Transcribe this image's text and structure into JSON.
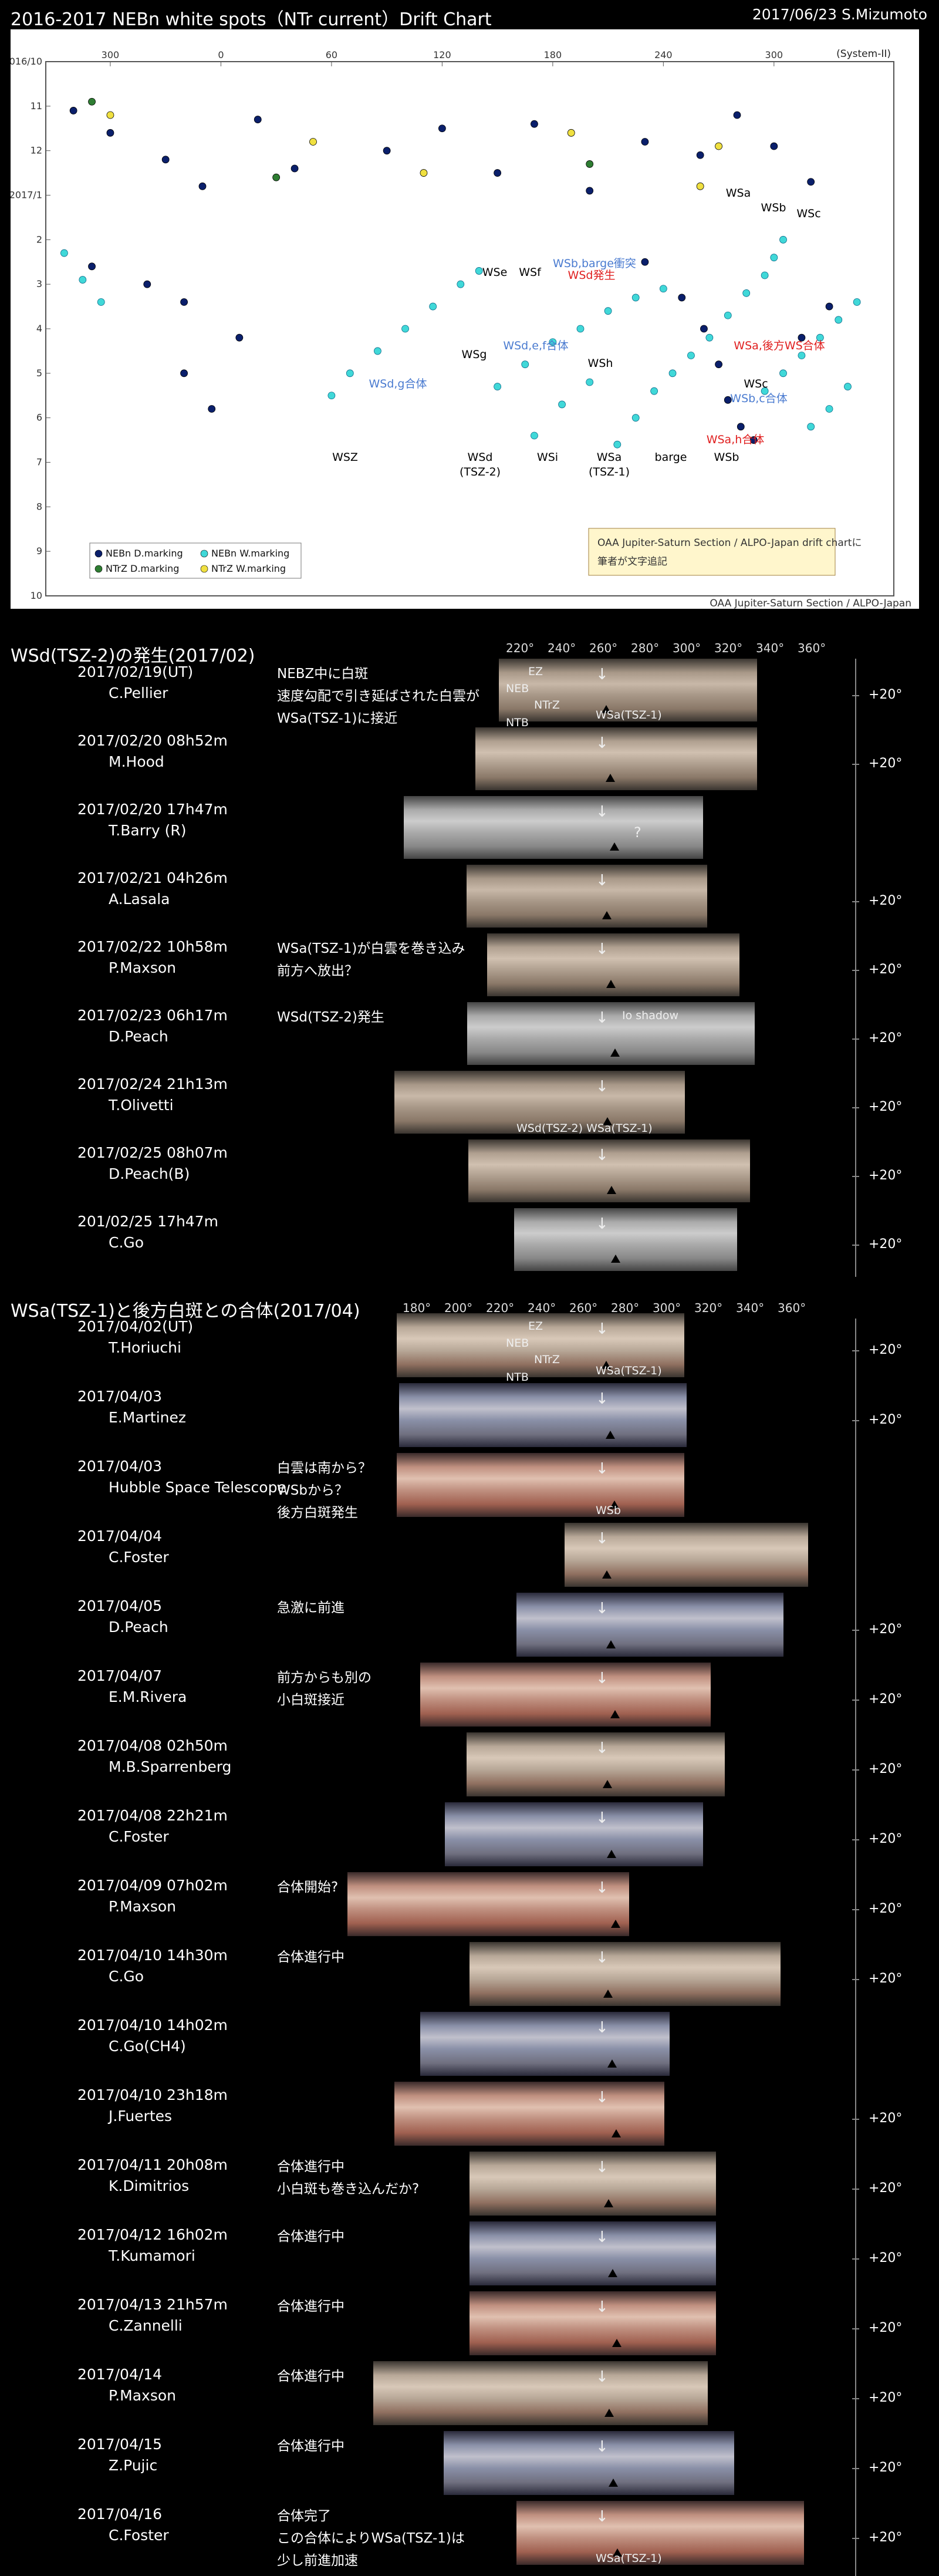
{
  "header": {
    "title": "2016-2017 NEBn white spots（NTr current）Drift Chart",
    "date_author": "2017/06/23 S.Mizumoto"
  },
  "chart_data": {
    "type": "scatter",
    "title": "2016-2017 NEBn white spots（NTr current）Drift Chart",
    "system": "(System-II)",
    "x_ticks": [
      "300",
      "0",
      "60",
      "120",
      "180",
      "240",
      "300"
    ],
    "y_ticks": [
      "2016/10",
      "11",
      "12",
      "2017/1",
      "2",
      "3",
      "4",
      "5",
      "6",
      "7",
      "8",
      "9",
      "10"
    ],
    "series": [
      {
        "name": "NEBn D.marking",
        "color": "#0a1f6b",
        "points": [
          [
            -80,
            11.1
          ],
          [
            -60,
            11.6
          ],
          [
            -30,
            12.2
          ],
          [
            -10,
            12.8
          ],
          [
            20,
            11.3
          ],
          [
            40,
            12.4
          ],
          [
            90,
            12.0
          ],
          [
            120,
            11.5
          ],
          [
            150,
            12.5
          ],
          [
            170,
            11.4
          ],
          [
            200,
            12.9
          ],
          [
            230,
            11.8
          ],
          [
            260,
            12.1
          ],
          [
            280,
            11.2
          ],
          [
            300,
            11.9
          ],
          [
            320,
            12.7
          ],
          [
            -70,
            2.6
          ],
          [
            -40,
            3.0
          ],
          [
            -20,
            3.4
          ],
          [
            10,
            4.2
          ],
          [
            -20,
            5.0
          ],
          [
            -5,
            5.8
          ],
          [
            230,
            2.5
          ],
          [
            250,
            3.3
          ],
          [
            262,
            4.0
          ],
          [
            270,
            4.8
          ],
          [
            275,
            5.6
          ],
          [
            282,
            6.2
          ],
          [
            289,
            6.5
          ],
          [
            315,
            4.2
          ],
          [
            330,
            3.5
          ]
        ]
      },
      {
        "name": "NEBn W.marking",
        "color": "#40d8d8",
        "points": [
          [
            -85,
            2.3
          ],
          [
            -75,
            2.9
          ],
          [
            -65,
            3.4
          ],
          [
            60,
            5.5
          ],
          [
            70,
            5.0
          ],
          [
            85,
            4.5
          ],
          [
            100,
            4.0
          ],
          [
            115,
            3.5
          ],
          [
            130,
            3.0
          ],
          [
            140,
            2.7
          ],
          [
            150,
            5.3
          ],
          [
            165,
            4.8
          ],
          [
            180,
            4.3
          ],
          [
            195,
            4.0
          ],
          [
            210,
            3.6
          ],
          [
            225,
            3.3
          ],
          [
            240,
            3.1
          ],
          [
            170,
            6.4
          ],
          [
            185,
            5.7
          ],
          [
            200,
            5.2
          ],
          [
            215,
            6.6
          ],
          [
            225,
            6.0
          ],
          [
            235,
            5.4
          ],
          [
            245,
            5.0
          ],
          [
            255,
            4.6
          ],
          [
            265,
            4.2
          ],
          [
            275,
            3.7
          ],
          [
            285,
            3.2
          ],
          [
            295,
            2.8
          ],
          [
            300,
            2.4
          ],
          [
            305,
            2.0
          ],
          [
            295,
            5.4
          ],
          [
            305,
            5.0
          ],
          [
            315,
            4.6
          ],
          [
            325,
            4.2
          ],
          [
            335,
            3.8
          ],
          [
            345,
            3.4
          ],
          [
            320,
            6.2
          ],
          [
            330,
            5.8
          ],
          [
            340,
            5.3
          ]
        ]
      },
      {
        "name": "NTrZ D.marking",
        "color": "#2e7d32",
        "points": [
          [
            -70,
            10.9
          ],
          [
            30,
            12.6
          ],
          [
            200,
            12.3
          ]
        ]
      },
      {
        "name": "NTrZ W.marking",
        "color": "#f0e040",
        "points": [
          [
            -60,
            11.2
          ],
          [
            50,
            11.8
          ],
          [
            110,
            12.5
          ],
          [
            190,
            11.6
          ],
          [
            260,
            12.8
          ],
          [
            270,
            11.9
          ]
        ]
      }
    ],
    "annotations": [
      {
        "text": "WSZ",
        "color": "#000"
      },
      {
        "text": "WSd",
        "color": "#000"
      },
      {
        "text": "(TSZ-2)",
        "color": "#000"
      },
      {
        "text": "WSi",
        "color": "#000"
      },
      {
        "text": "WSa",
        "color": "#000"
      },
      {
        "text": "(TSZ-1)",
        "color": "#000"
      },
      {
        "text": "barge",
        "color": "#000"
      },
      {
        "text": "WSb",
        "color": "#000"
      },
      {
        "text": "WSe",
        "color": "#000"
      },
      {
        "text": "WSf",
        "color": "#000"
      },
      {
        "text": "WSg",
        "color": "#000"
      },
      {
        "text": "WSh",
        "color": "#000"
      },
      {
        "text": "WSa",
        "color": "#000"
      },
      {
        "text": "WSb",
        "color": "#000"
      },
      {
        "text": "WSc",
        "color": "#000"
      },
      {
        "text": "WSc",
        "color": "#000"
      },
      {
        "text": "WSd,e,f合体",
        "color": "#4a7bd0"
      },
      {
        "text": "WSd,g合体",
        "color": "#4a7bd0"
      },
      {
        "text": "WSb,barge衝突",
        "color": "#4a7bd0"
      },
      {
        "text": "WSd発生",
        "color": "#e02020"
      },
      {
        "text": "WSa,後方WS合体",
        "color": "#e02020"
      },
      {
        "text": "WSb,c合体",
        "color": "#4a7bd0"
      },
      {
        "text": "WSa,h合体",
        "color": "#e02020"
      }
    ],
    "credit_box": [
      "OAA Jupiter-Saturn Section / ALPO-Japan drift chartに",
      "筆者が文字追記"
    ],
    "credit_bottom": "OAA Jupiter-Saturn Section / ALPO-Japan"
  },
  "section1": {
    "title": "WSd(TSZ-2)の発生(2017/02)",
    "scale": [
      "220°",
      "240°",
      "260°",
      "280°",
      "300°",
      "320°",
      "340°",
      "360°"
    ],
    "bands": [
      "EZ",
      "NEB",
      "NTrZ",
      "NTB"
    ],
    "rows": [
      {
        "date": "2017/02/19(UT)",
        "observer": "C.Pellier",
        "note": [
          "NEBZ中に白斑",
          "速度勾配で引き延ばされた白雲が",
          "WSa(TSZ-1)に接近"
        ],
        "lat": "+20°",
        "marker": "WSa(TSZ-1)"
      },
      {
        "date": "2017/02/20 08h52m",
        "observer": "M.Hood",
        "note": [],
        "lat": "+20°"
      },
      {
        "date": "2017/02/20 17h47m",
        "observer": "T.Barry (R)",
        "note": [],
        "lat": "",
        "q": "?"
      },
      {
        "date": "2017/02/21 04h26m",
        "observer": "A.Lasala",
        "note": [],
        "lat": "+20°"
      },
      {
        "date": "2017/02/22 10h58m",
        "observer": "P.Maxson",
        "note": [
          "WSa(TSZ-1)が白雲を巻き込み",
          "前方へ放出？"
        ],
        "lat": "+20°"
      },
      {
        "date": "2017/02/23 06h17m",
        "observer": "D.Peach",
        "note": [
          "WSd(TSZ-2)発生"
        ],
        "lat": "+20°",
        "io": "Io shadow"
      },
      {
        "date": "2017/02/24 21h13m",
        "observer": "T.Olivetti",
        "note": [],
        "lat": "+20°",
        "labels": "WSd(TSZ-2) WSa(TSZ-1)"
      },
      {
        "date": "2017/02/25 08h07m",
        "observer": "D.Peach(B)",
        "note": [],
        "lat": "+20°"
      },
      {
        "date": "201/02/25 17h47m",
        "observer": "C.Go",
        "note": [],
        "lat": "+20°"
      }
    ]
  },
  "section2": {
    "title": "WSa(TSZ-1)と後方白斑との合体(2017/04)",
    "scale": [
      "180°",
      "200°",
      "220°",
      "240°",
      "260°",
      "280°",
      "300°",
      "320°",
      "340°",
      "360°"
    ],
    "bands": [
      "EZ",
      "NEB",
      "NTrZ",
      "NTB"
    ],
    "rows": [
      {
        "date": "2017/04/02(UT)",
        "observer": "T.Horiuchi",
        "note": [],
        "lat": "+20°",
        "marker": "WSa(TSZ-1)"
      },
      {
        "date": "2017/04/03",
        "observer": "E.Martinez",
        "note": [],
        "lat": "+20°"
      },
      {
        "date": "2017/04/03",
        "observer": "Hubble Space Telescope",
        "note": [
          "白雲は南から？",
          "WSbから？",
          "後方白斑発生"
        ],
        "lat": "",
        "marker": "WSb"
      },
      {
        "date": "2017/04/04",
        "observer": "C.Foster",
        "note": [],
        "lat": ""
      },
      {
        "date": "2017/04/05",
        "observer": "D.Peach",
        "note": [
          "急激に前進"
        ],
        "lat": "+20°"
      },
      {
        "date": "2017/04/07",
        "observer": "E.M.Rivera",
        "note": [
          "前方からも別の",
          "小白斑接近"
        ],
        "lat": "+20°"
      },
      {
        "date": "2017/04/08 02h50m",
        "observer": "M.B.Sparrenberg",
        "note": [],
        "lat": "+20°"
      },
      {
        "date": "2017/04/08 22h21m",
        "observer": "C.Foster",
        "note": [],
        "lat": "+20°"
      },
      {
        "date": "2017/04/09 07h02m",
        "observer": "P.Maxson",
        "note": [
          "合体開始?"
        ],
        "lat": "+20°"
      },
      {
        "date": "2017/04/10 14h30m",
        "observer": "C.Go",
        "note": [
          "合体進行中"
        ],
        "lat": "+20°"
      },
      {
        "date": "2017/04/10 14h02m",
        "observer": "C.Go(CH4)",
        "note": [],
        "lat": ""
      },
      {
        "date": "2017/04/10 23h18m",
        "observer": "J.Fuertes",
        "note": [],
        "lat": "+20°"
      },
      {
        "date": "2017/04/11 20h08m",
        "observer": "K.Dimitrios",
        "note": [
          "合体進行中",
          "小白斑も巻き込んだか?"
        ],
        "lat": "+20°"
      },
      {
        "date": "2017/04/12 16h02m",
        "observer": "T.Kumamori",
        "note": [
          "合体進行中"
        ],
        "lat": "+20°"
      },
      {
        "date": "2017/04/13 21h57m",
        "observer": "C.Zannelli",
        "note": [
          "合体進行中"
        ],
        "lat": "+20°"
      },
      {
        "date": "2017/04/14",
        "observer": "P.Maxson",
        "note": [
          "合体進行中"
        ],
        "lat": "+20°"
      },
      {
        "date": "2017/04/15",
        "observer": "Z.Pujic",
        "note": [
          "合体進行中"
        ],
        "lat": "+20°"
      },
      {
        "date": "2017/04/16",
        "observer": "C.Foster",
        "note": [
          "合体完了",
          "この合体によりWSa(TSZ-1)は",
          "少し前進加速"
        ],
        "lat": "+20°",
        "marker": "WSa(TSZ-1)"
      }
    ]
  }
}
